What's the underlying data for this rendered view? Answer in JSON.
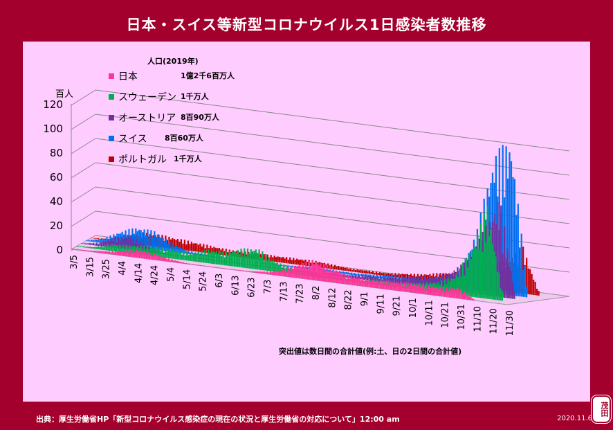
{
  "title": "日本・スイス等新型コロナウイルス1日感染者数推移",
  "footer": "出典：厚生労働省HP「新型コロナウイルス感染症の現在の状況と厚生労働省の対応について」12:00 am",
  "date": "2020.11.6",
  "seal": "茂田",
  "colors": {
    "background": "#a3002d",
    "plot": "#ffccff"
  },
  "chart_data": {
    "type": "bar",
    "title": "日本・スイス等新型コロナウイルス1日感染者数推移",
    "yunit": "百人",
    "ylim": [
      0,
      120
    ],
    "yticks": [
      "0",
      "20",
      "40",
      "60",
      "80",
      "100",
      "120"
    ],
    "categories": [
      "3/5",
      "3/15",
      "3/25",
      "4/4",
      "4/14",
      "4/24",
      "5/4",
      "5/14",
      "5/24",
      "6/3",
      "6/13",
      "6/23",
      "7/3",
      "7/13",
      "7/23",
      "8/2",
      "8/12",
      "8/22",
      "9/1",
      "9/11",
      "9/21",
      "10/1",
      "10/11",
      "10/21",
      "10/31",
      "11/10",
      "11/20",
      "11/30"
    ],
    "legend_header": "人口(2019年)",
    "note": "突出値は数日間の合計値(例:土、日の2日間の合計値)",
    "series": [
      {
        "name": "日本",
        "population": "1億2千6百万人",
        "color": "#ff3399",
        "values": [
          0.5,
          0.6,
          1.5,
          3,
          5.5,
          4,
          2,
          0.5,
          0.3,
          0.3,
          0.3,
          0.5,
          1.5,
          4,
          9,
          13,
          10,
          6,
          5,
          5,
          5.5,
          6,
          6,
          6,
          7,
          0,
          0,
          0
        ]
      },
      {
        "name": "スウェーデン",
        "population": "1千万人",
        "color": "#00b050",
        "values": [
          0.5,
          1,
          4,
          5,
          6,
          6,
          6,
          5,
          9,
          9,
          12,
          14,
          7,
          4,
          3,
          2,
          2,
          2,
          3,
          3,
          3,
          5,
          7,
          12,
          30,
          60,
          0,
          0
        ]
      },
      {
        "name": "オーストリア",
        "population": "8百90万人",
        "color": "#7030a0",
        "values": [
          0.3,
          2,
          7,
          9,
          4,
          1,
          0.5,
          0.5,
          0.5,
          0.5,
          0.5,
          0.8,
          1,
          1,
          1.5,
          2,
          2,
          3,
          3,
          5,
          7,
          8,
          12,
          20,
          40,
          65,
          0,
          0
        ]
      },
      {
        "name": "スイス",
        "population": "8百60万人",
        "color": "#0070f0",
        "values": [
          0.5,
          3,
          9,
          13,
          12,
          6,
          2,
          1,
          0.5,
          0.3,
          0.3,
          0.5,
          1,
          1.5,
          1.5,
          1.5,
          1.5,
          2,
          3,
          3,
          4,
          6,
          12,
          40,
          90,
          100,
          0,
          0
        ]
      },
      {
        "name": "ポルトガル",
        "population": "1千万人",
        "color": "#c00000",
        "values": [
          0.2,
          1,
          5,
          8,
          8,
          7,
          6,
          5,
          4,
          4,
          4,
          4,
          4,
          4,
          3,
          2,
          2,
          2,
          3,
          4,
          6,
          8,
          10,
          15,
          20,
          30,
          0,
          0
        ]
      }
    ]
  }
}
